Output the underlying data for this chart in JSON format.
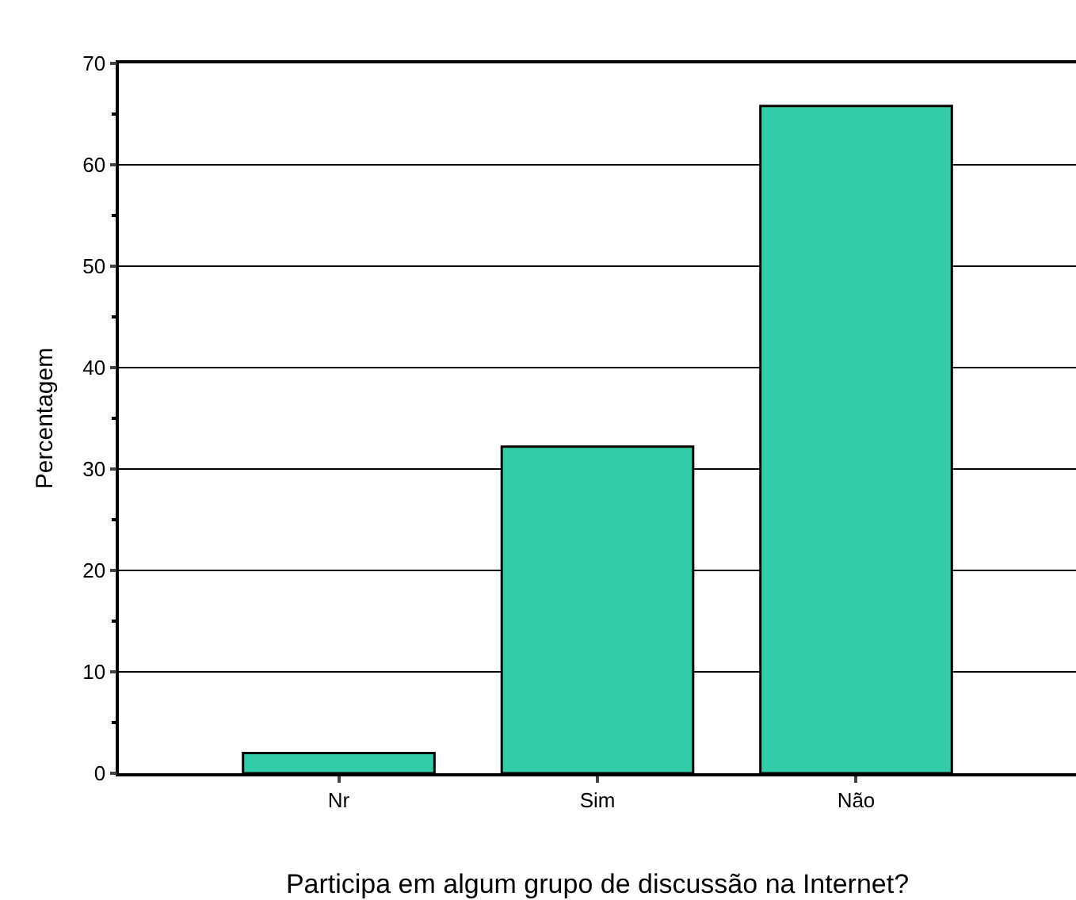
{
  "chart_data": {
    "type": "bar",
    "categories": [
      "Nr",
      "Sim",
      "Não"
    ],
    "values": [
      2.0,
      32.2,
      65.8
    ],
    "color": "#33cdaa",
    "xlabel": "Participa em algum grupo de discussão na Internet?",
    "ylabel": "Percentagem",
    "ylim": [
      0,
      70
    ],
    "yticks": [
      0,
      10,
      20,
      30,
      40,
      50,
      60,
      70
    ],
    "grid": "y"
  }
}
